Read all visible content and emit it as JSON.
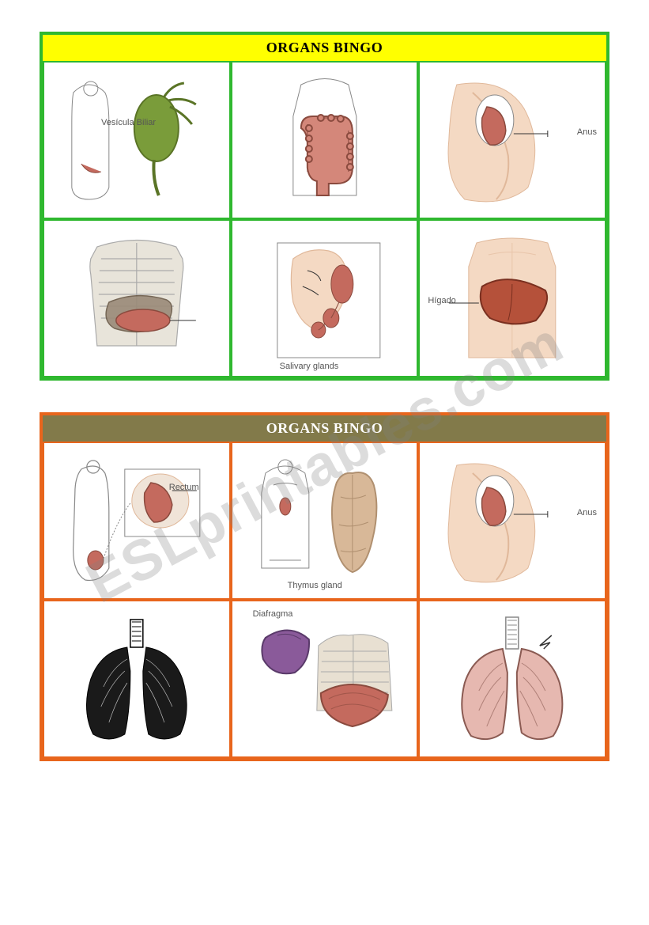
{
  "watermark_text": "ESLprintables.com",
  "card1": {
    "title": "ORGANS BINGO",
    "border_color": "#2fb82f",
    "header_bg": "#ffff00",
    "header_text_color": "#000000",
    "cells": [
      {
        "organ": "gallbladder",
        "label": "Vesícula Biliar",
        "label_pos": "left:72px;top:70px"
      },
      {
        "organ": "large-intestine",
        "label": "",
        "label_pos": ""
      },
      {
        "organ": "anus",
        "label": "Anus",
        "label_pos": "right:10px;top:82px"
      },
      {
        "organ": "pancreas",
        "label": "",
        "label_pos": ""
      },
      {
        "organ": "salivary-glands",
        "label": "Salivary glands",
        "label_pos": "bottom:6px;left:60px"
      },
      {
        "organ": "liver",
        "label": "Hígado",
        "label_pos": "left:10px;top:95px"
      }
    ]
  },
  "card2": {
    "title": "ORGANS BINGO",
    "border_color": "#e8651c",
    "header_bg": "#827a4a",
    "header_text_color": "#ffffff",
    "cells": [
      {
        "organ": "rectum",
        "label": "Rectum",
        "label_pos": "right:38px;top:50px"
      },
      {
        "organ": "thymus",
        "label": "Thymus gland",
        "label_pos": "bottom:10px;left:70px"
      },
      {
        "organ": "anus",
        "label": "Anus",
        "label_pos": "right:10px;top:82px"
      },
      {
        "organ": "lungs-bw",
        "label": "",
        "label_pos": ""
      },
      {
        "organ": "diaphragm",
        "label": "Diafragma",
        "label_pos": "top:10px;left:26px"
      },
      {
        "organ": "lungs-pink",
        "label": "",
        "label_pos": ""
      }
    ]
  },
  "colors": {
    "skin": "#f4d9c3",
    "skin_shade": "#e0b89a",
    "organ_red": "#c46a5e",
    "organ_dark": "#8a4a3e",
    "intestine": "#d4877a",
    "liver": "#b5513a",
    "lung_pink": "#e6b8b0",
    "lung_outline": "#8a5a52",
    "gallbladder": "#7a9c3a",
    "bone": "#cfc9b8",
    "outline": "#888888",
    "gray": "#aaaaaa"
  }
}
